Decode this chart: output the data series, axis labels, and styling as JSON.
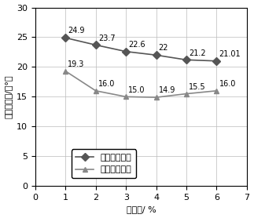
{
  "series1_name": "常温状态直剪",
  "series2_name": "冷冻状态直剪",
  "series1_x": [
    1,
    2,
    3,
    4,
    5,
    6
  ],
  "series1_y": [
    24.9,
    23.7,
    22.6,
    22,
    21.2,
    21.01
  ],
  "series1_labels": [
    "24.9",
    "23.7",
    "22.6",
    "22",
    "21.2",
    "21.01"
  ],
  "series1_label_offsets": [
    [
      0.08,
      0.5
    ],
    [
      0.08,
      0.5
    ],
    [
      0.08,
      0.5
    ],
    [
      0.08,
      0.5
    ],
    [
      0.08,
      0.5
    ],
    [
      0.08,
      0.5
    ]
  ],
  "series2_x": [
    1,
    2,
    3,
    4,
    5,
    6
  ],
  "series2_y": [
    19.3,
    16.0,
    15.0,
    14.9,
    15.5,
    16.0
  ],
  "series2_labels": [
    "19.3",
    "16.0",
    "15.0",
    "14.9",
    "15.5",
    "16.0"
  ],
  "series2_label_offsets": [
    [
      0.08,
      0.5
    ],
    [
      0.08,
      0.5
    ],
    [
      0.08,
      0.5
    ],
    [
      0.08,
      0.5
    ],
    [
      0.08,
      0.5
    ],
    [
      0.08,
      0.5
    ]
  ],
  "xlabel": "含水率/ %",
  "ylabel": "直剪摩擦角/（°）",
  "xlim": [
    0,
    7
  ],
  "ylim": [
    0,
    30
  ],
  "xticks": [
    0,
    1,
    2,
    3,
    4,
    5,
    6,
    7
  ],
  "yticks": [
    0,
    5,
    10,
    15,
    20,
    25,
    30
  ],
  "series1_color": "#555555",
  "series2_color": "#888888",
  "marker1": "D",
  "marker2": "^",
  "background_color": "#ffffff",
  "grid_color": "#bbbbbb",
  "label_fontsize": 8,
  "tick_fontsize": 8,
  "annotation_fontsize": 7,
  "legend_fontsize": 8,
  "markersize1": 5,
  "markersize2": 5,
  "linewidth": 1.2
}
